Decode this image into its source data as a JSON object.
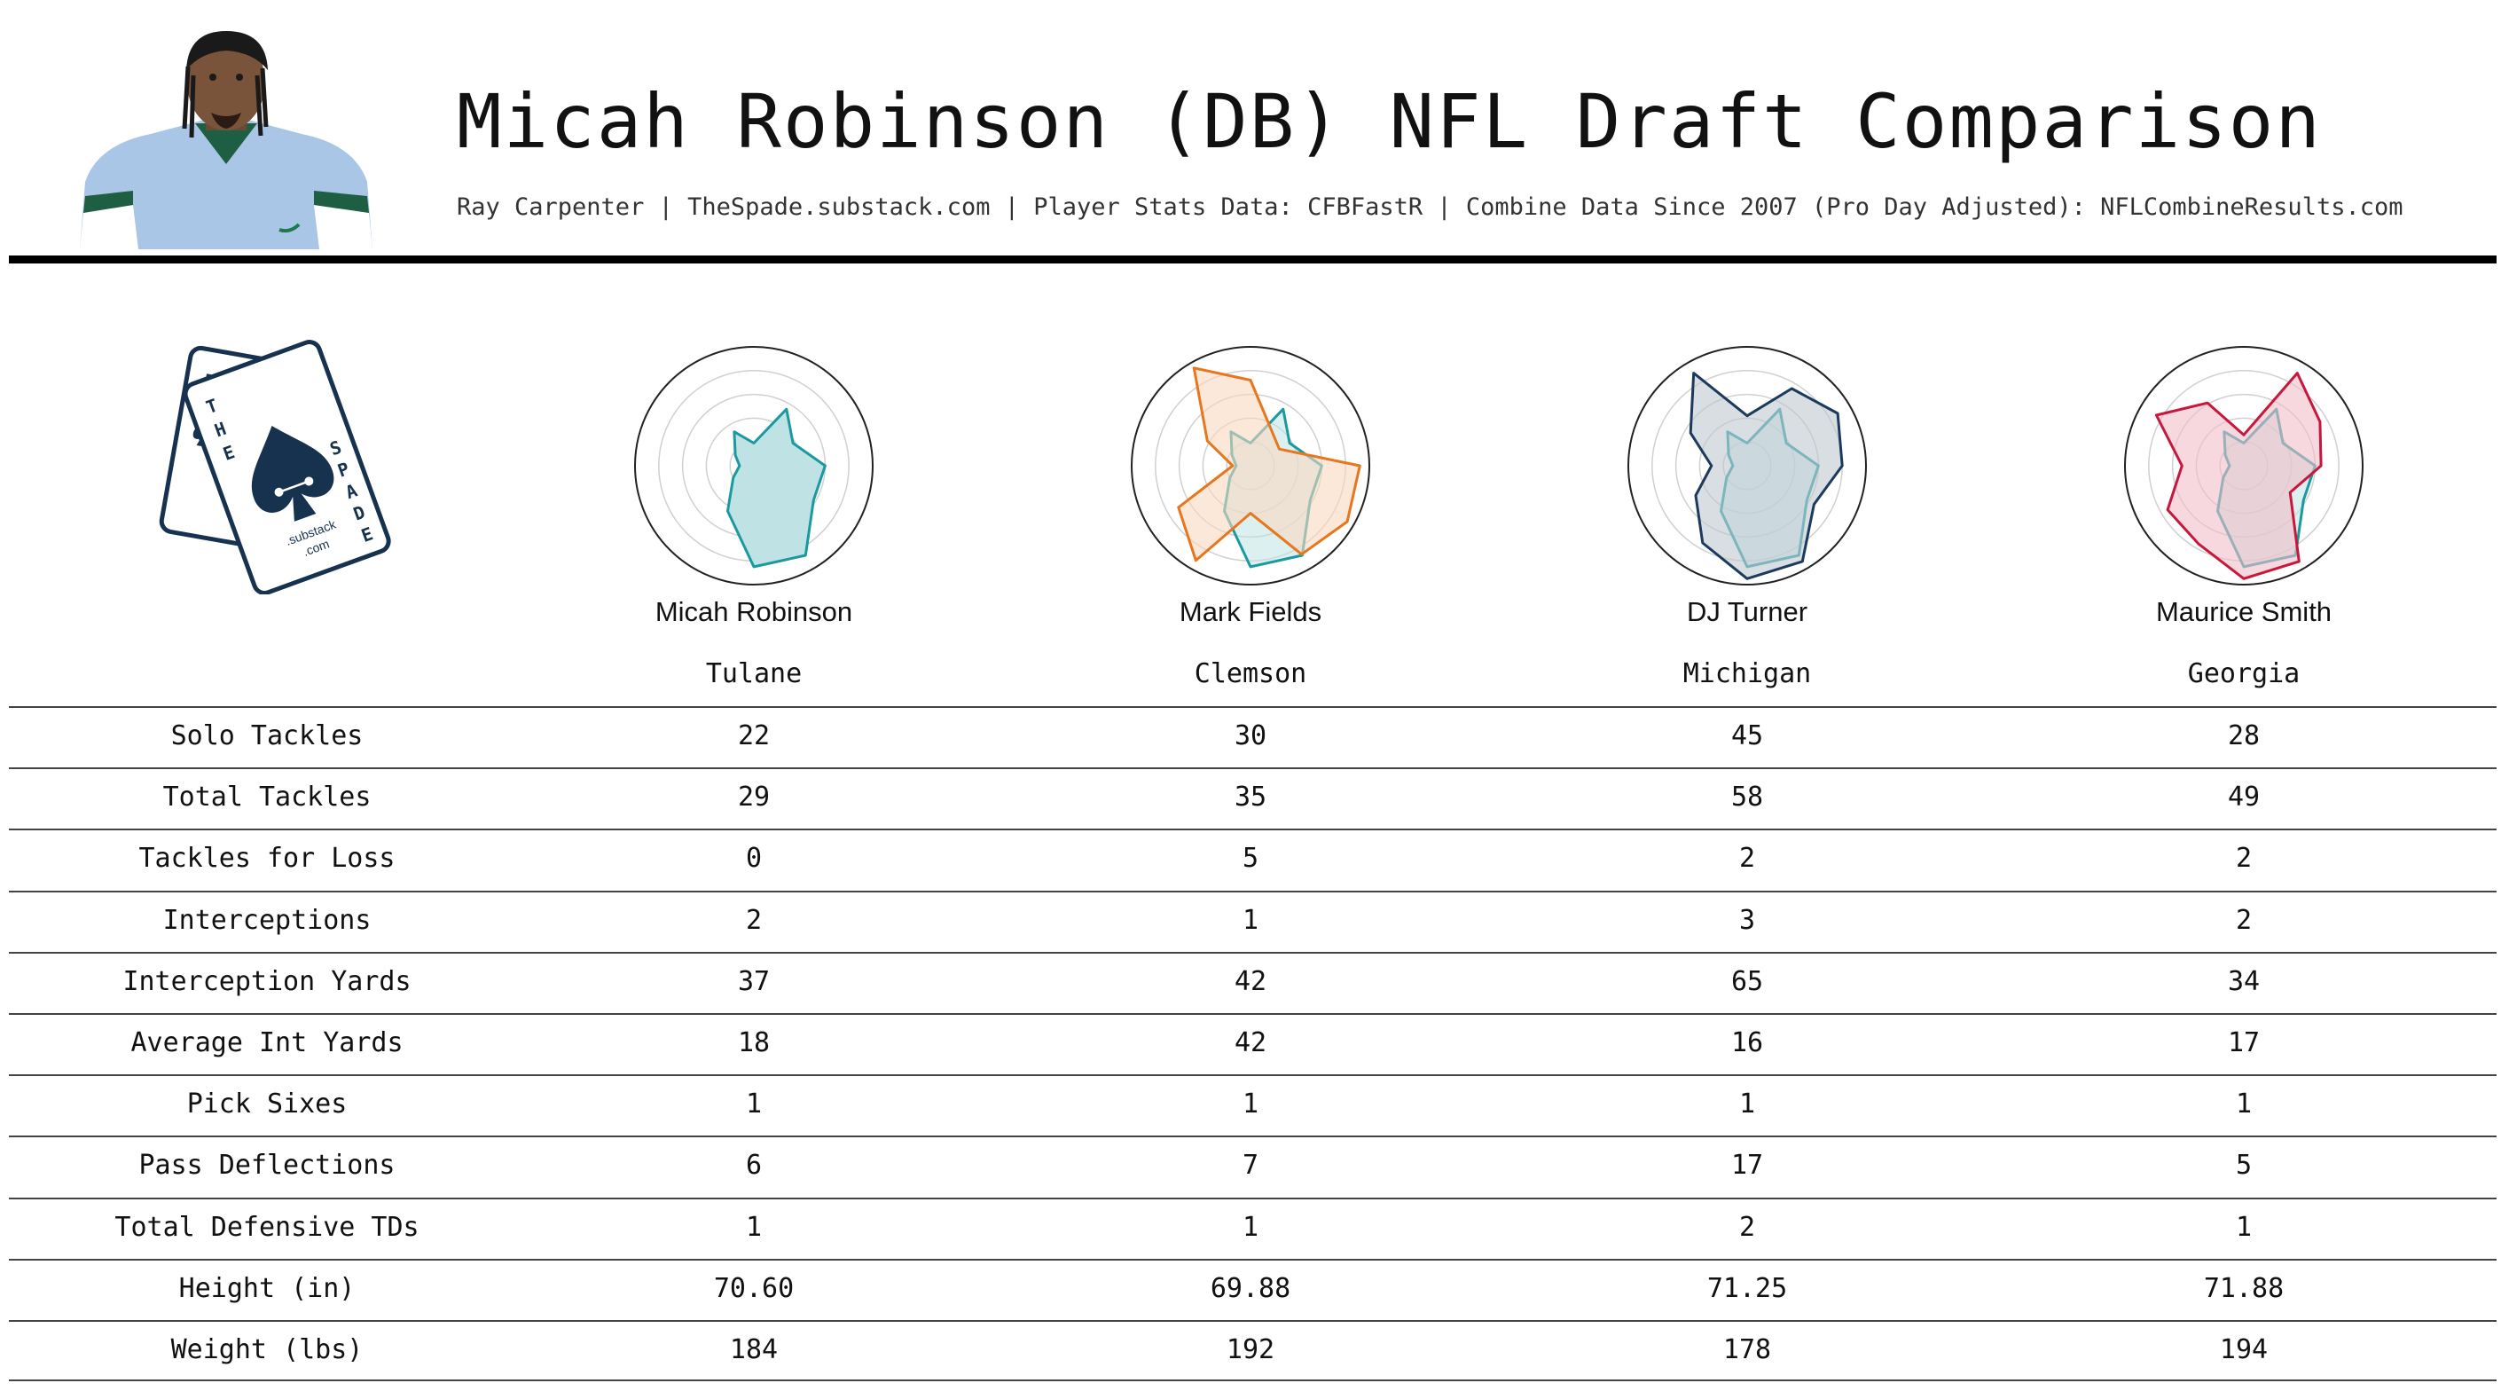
{
  "header": {
    "title": "Micah Robinson (DB) NFL Draft Comparison",
    "subtitle": "Ray Carpenter | TheSpade.substack.com | Player Stats Data: CFBFastR | Combine Data Since 2007 (Pro Day Adjusted): NFLCombineResults.com"
  },
  "logo": {
    "letters_back": [
      "R",
      "C"
    ],
    "letters_front_left": [
      "T",
      "H",
      "E"
    ],
    "letters_front_right": [
      "S",
      "P",
      "A",
      "D",
      "E"
    ],
    "small_text": [
      ".substack",
      ".com"
    ]
  },
  "colors": {
    "subject": "#1a9aa0",
    "subject_fill": "#cfe8ea",
    "comparisons": [
      "#e8761e",
      "#1b3a5c",
      "#c8173c"
    ]
  },
  "players": [
    {
      "name": "Micah Robinson",
      "school": "Tulane"
    },
    {
      "name": "Mark Fields",
      "school": "Clemson"
    },
    {
      "name": "DJ Turner",
      "school": "Michigan"
    },
    {
      "name": "Maurice Smith",
      "school": "Georgia"
    }
  ],
  "stats": [
    {
      "label": "Solo Tackles",
      "values": [
        "22",
        "30",
        "45",
        "28"
      ]
    },
    {
      "label": "Total Tackles",
      "values": [
        "29",
        "35",
        "58",
        "49"
      ]
    },
    {
      "label": "Tackles for Loss",
      "values": [
        "0",
        "5",
        "2",
        "2"
      ]
    },
    {
      "label": "Interceptions",
      "values": [
        "2",
        "1",
        "3",
        "2"
      ]
    },
    {
      "label": "Interception Yards",
      "values": [
        "37",
        "42",
        "65",
        "34"
      ]
    },
    {
      "label": "Average Int Yards",
      "values": [
        "18",
        "42",
        "16",
        "17"
      ]
    },
    {
      "label": "Pick Sixes",
      "values": [
        "1",
        "1",
        "1",
        "1"
      ]
    },
    {
      "label": "Pass Deflections",
      "values": [
        "6",
        "7",
        "17",
        "5"
      ]
    },
    {
      "label": "Total Defensive TDs",
      "values": [
        "1",
        "1",
        "2",
        "1"
      ]
    },
    {
      "label": "Height (in)",
      "values": [
        "70.60",
        "69.88",
        "71.25",
        "71.88"
      ]
    },
    {
      "label": "Weight (lbs)",
      "values": [
        "184",
        "192",
        "178",
        "194"
      ]
    }
  ],
  "chart_data": [
    {
      "type": "radar",
      "player": "Micah Robinson",
      "rlim": [
        0,
        1
      ],
      "series": [
        {
          "name": "Micah Robinson",
          "color": "#1a9aa0",
          "values": [
            0.19,
            0.55,
            0.38,
            0.6,
            0.58,
            0.87,
            0.85,
            0.44,
            0.2,
            0.12,
            0.18,
            0.33
          ]
        }
      ]
    },
    {
      "type": "radar",
      "player": "Mark Fields",
      "rlim": [
        0,
        1
      ],
      "series": [
        {
          "name": "Micah Robinson",
          "color": "#1a9aa0",
          "values": [
            0.19,
            0.55,
            0.38,
            0.6,
            0.58,
            0.87,
            0.85,
            0.44,
            0.2,
            0.12,
            0.18,
            0.33
          ]
        },
        {
          "name": "Mark Fields",
          "color": "#e8761e",
          "values": [
            0.72,
            0.35,
            0.28,
            0.92,
            0.94,
            0.86,
            0.4,
            0.92,
            0.7,
            0.15,
            0.42,
            0.95
          ]
        }
      ]
    },
    {
      "type": "radar",
      "player": "DJ Turner",
      "rlim": [
        0,
        1
      ],
      "series": [
        {
          "name": "Micah Robinson",
          "color": "#1a9aa0",
          "values": [
            0.19,
            0.55,
            0.38,
            0.6,
            0.58,
            0.87,
            0.85,
            0.44,
            0.2,
            0.12,
            0.18,
            0.33
          ]
        },
        {
          "name": "DJ Turner",
          "color": "#1b3a5c",
          "values": [
            0.42,
            0.75,
            0.88,
            0.8,
            0.65,
            0.93,
            0.95,
            0.75,
            0.5,
            0.3,
            0.55,
            0.9
          ]
        }
      ]
    },
    {
      "type": "radar",
      "player": "Maurice Smith",
      "rlim": [
        0,
        1
      ],
      "series": [
        {
          "name": "Micah Robinson",
          "color": "#1a9aa0",
          "values": [
            0.19,
            0.55,
            0.38,
            0.6,
            0.58,
            0.87,
            0.85,
            0.44,
            0.2,
            0.12,
            0.18,
            0.33
          ]
        },
        {
          "name": "Maurice Smith",
          "color": "#c8173c",
          "values": [
            0.26,
            0.9,
            0.74,
            0.65,
            0.45,
            0.93,
            0.95,
            0.76,
            0.74,
            0.52,
            0.85,
            0.61
          ]
        }
      ]
    }
  ]
}
